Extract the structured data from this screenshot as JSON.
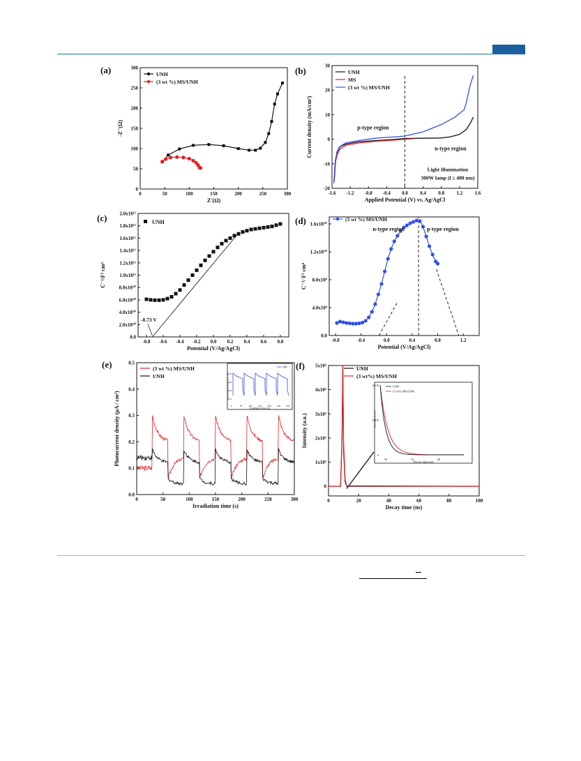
{
  "colors": {
    "black": "#111111",
    "red": "#e81e25",
    "blue": "#3050e8",
    "dashed": "#222222",
    "rule": "#1f6fa6",
    "tab": "#1a5f9c"
  },
  "panels": [
    {
      "id": "a",
      "label": "(a)"
    },
    {
      "id": "b",
      "label": "(b)"
    },
    {
      "id": "c",
      "label": "(c)"
    },
    {
      "id": "d",
      "label": "(d)"
    },
    {
      "id": "e",
      "label": "(e)"
    },
    {
      "id": "f",
      "label": "(f)"
    }
  ],
  "chart_data": [
    {
      "panel": "a",
      "type": "line",
      "xlabel": "Z'(Ω)",
      "ylabel": "-Z''(Ω)",
      "xlim": [
        0,
        300
      ],
      "ylim": [
        0,
        300
      ],
      "xticks": [
        0,
        50,
        100,
        150,
        200,
        250,
        300
      ],
      "yticks": [
        0,
        50,
        100,
        150,
        200,
        250,
        300
      ],
      "legend": "top-left",
      "series": [
        {
          "name": "UNH",
          "color": "#111111",
          "x": [
            45,
            57,
            80,
            108,
            140,
            170,
            200,
            222,
            235,
            245,
            255,
            262,
            268,
            274,
            280,
            290
          ],
          "y": [
            67,
            84,
            99,
            108,
            110,
            107,
            100,
            96,
            96,
            101,
            115,
            137,
            167,
            210,
            235,
            262
          ]
        },
        {
          "name": "(3 wt %) MS/UNH",
          "color": "#e81e25",
          "x": [
            45,
            52,
            62,
            75,
            88,
            100,
            108,
            114,
            118,
            121,
            123
          ],
          "y": [
            68,
            74,
            78,
            79,
            78,
            75,
            70,
            65,
            59,
            53,
            52
          ]
        }
      ]
    },
    {
      "panel": "b",
      "type": "line",
      "xlabel": "Applied Potential (V) vs. Ag/AgCl",
      "ylabel": "Current density (mA/cm²)",
      "xlim": [
        -1.6,
        1.6
      ],
      "ylim": [
        -20,
        30
      ],
      "xticks": [
        "-1.6",
        "-1.2",
        "-0.8",
        "-0.4",
        "0.0",
        "0.4",
        "0.8",
        "1.2",
        "1.6"
      ],
      "yticks": [
        "-20",
        "-10",
        "0",
        "10",
        "20",
        "30"
      ],
      "legend": "top-left",
      "annotations": [
        "p-type region",
        "n-type region",
        "Light illumination",
        "300W lamp (l ≥ 400 nm)"
      ],
      "series": [
        {
          "name": "UNH",
          "color": "#111111",
          "x": [
            -1.55,
            -1.52,
            -1.48,
            -1.42,
            -1.3,
            -1.0,
            -0.6,
            -0.2,
            0.0,
            0.4,
            0.8,
            1.0,
            1.2,
            1.35,
            1.45,
            1.5
          ],
          "y": [
            -16,
            -8,
            -5,
            -3,
            -2,
            -1,
            -0.5,
            0,
            0.3,
            0.4,
            0.5,
            1,
            2,
            4,
            7,
            9
          ]
        },
        {
          "name": "MS",
          "color": "#e81e25",
          "x": [
            -1.55,
            -1.52,
            -1.48,
            -1.42,
            -1.3,
            -1.0,
            -0.6,
            -0.2,
            0.0,
            0.2
          ],
          "y": [
            -17,
            -9,
            -6,
            -4,
            -2.5,
            -1.5,
            -0.8,
            -0.3,
            0.0,
            0.2
          ]
        },
        {
          "name": "(3 wt %) MS/UNH",
          "color": "#3050e8",
          "x": [
            -1.56,
            -1.53,
            -1.49,
            -1.43,
            -1.3,
            -1.0,
            -0.6,
            -0.2,
            0.0,
            0.4,
            0.8,
            1.1,
            1.3,
            1.35,
            1.42,
            1.5
          ],
          "y": [
            -18,
            -9,
            -5,
            -3,
            -1.5,
            -0.5,
            0.5,
            1.0,
            1.3,
            3,
            6,
            9,
            12,
            15,
            21,
            26
          ]
        }
      ]
    },
    {
      "panel": "c",
      "type": "scatter",
      "xlabel": "Potential (V/Ag/AgCl)",
      "ylabel": "C⁻²/F² cm⁴",
      "xlim": [
        -0.9,
        0.9
      ],
      "ylim": [
        0,
        200000000000.0
      ],
      "xticks": [
        "-0.8",
        "-0.6",
        "-0.4",
        "-0.2",
        "0.0",
        "0.2",
        "0.4",
        "0.6",
        "0.8"
      ],
      "yticks": [
        "0.0",
        "2.0x10¹⁰",
        "4.0x10¹⁰",
        "6.0x10¹⁰",
        "8.0x10¹⁰",
        "1.0x10¹¹",
        "1.2x10¹¹",
        "1.4x10¹¹",
        "1.6x10¹¹",
        "1.8x10¹¹",
        "2.0x10¹¹"
      ],
      "legend": "top-left",
      "annotations": [
        "-0.73 V"
      ],
      "series": [
        {
          "name": "UNH",
          "color": "#111111",
          "x": [
            -0.8,
            -0.75,
            -0.7,
            -0.65,
            -0.6,
            -0.55,
            -0.5,
            -0.45,
            -0.4,
            -0.35,
            -0.3,
            -0.25,
            -0.2,
            -0.15,
            -0.1,
            -0.05,
            0.0,
            0.05,
            0.1,
            0.15,
            0.2,
            0.25,
            0.3,
            0.35,
            0.4,
            0.45,
            0.5,
            0.55,
            0.6,
            0.65,
            0.7,
            0.75,
            0.8
          ],
          "y": [
            61000000000.0,
            60000000000.0,
            59500000000.0,
            59500000000.0,
            60000000000.0,
            62000000000.0,
            65000000000.0,
            70000000000.0,
            76000000000.0,
            84000000000.0,
            92000000000.0,
            100000000000.0,
            108000000000.0,
            116000000000.0,
            124000000000.0,
            131000000000.0,
            138000000000.0,
            145000000000.0,
            151000000000.0,
            156000000000.0,
            160000000000.0,
            164000000000.0,
            167000000000.0,
            170000000000.0,
            172000000000.0,
            174000000000.0,
            175000000000.0,
            176000000000.0,
            177000000000.0,
            178000000000.0,
            179000000000.0,
            181000000000.0,
            183000000000.0
          ]
        }
      ],
      "tangent": {
        "x": [
          -0.73,
          0.28
        ],
        "y": [
          0,
          165000000000.0
        ]
      }
    },
    {
      "panel": "d",
      "type": "line",
      "xlabel": "Potential (V/Ag/AgCl)",
      "ylabel": "C⁻²/ F² cm⁴",
      "xlim": [
        -0.9,
        1.45
      ],
      "ylim": [
        0,
        17000000000.0
      ],
      "xticks": [
        "-0.8",
        "-0.4",
        "0.0",
        "0.4",
        "0.8",
        "1.2"
      ],
      "yticks": [
        "0.0",
        "4.0x10⁹",
        "8.0x10⁹",
        "1.2x10¹⁰",
        "1.6x10¹⁰"
      ],
      "legend": "top-left",
      "annotations": [
        "n-type region",
        "p-type region"
      ],
      "series": [
        {
          "name": "(3 wt %) MS/UNH",
          "color": "#3050e8",
          "x": [
            -0.78,
            -0.73,
            -0.68,
            -0.63,
            -0.58,
            -0.53,
            -0.48,
            -0.43,
            -0.38,
            -0.33,
            -0.28,
            -0.23,
            -0.18,
            -0.13,
            -0.08,
            -0.03,
            0.02,
            0.07,
            0.12,
            0.17,
            0.22,
            0.27,
            0.32,
            0.37,
            0.42,
            0.47,
            0.52,
            0.57,
            0.62,
            0.67,
            0.72,
            0.77,
            0.8
          ],
          "y": [
            1800000000.0,
            2000000000.0,
            1900000000.0,
            1800000000.0,
            1750000000.0,
            1700000000.0,
            1700000000.0,
            1750000000.0,
            1850000000.0,
            2100000000.0,
            2600000000.0,
            3400000000.0,
            4500000000.0,
            5900000000.0,
            7400000000.0,
            9200000000.0,
            11000000000.0,
            12400000000.0,
            13500000000.0,
            14300000000.0,
            15000000000.0,
            15500000000.0,
            15800000000.0,
            16100000000.0,
            16300000000.0,
            16500000000.0,
            16400000000.0,
            15600000000.0,
            14200000000.0,
            12800000000.0,
            11600000000.0,
            10600000000.0,
            10300000000.0
          ]
        }
      ],
      "dashed_lines": [
        {
          "x": [
            -0.12,
            0.17
          ],
          "y": [
            0,
            4800000000.0
          ]
        },
        {
          "x": [
            0.5,
            0.5
          ],
          "y": [
            0,
            17000000000.0
          ]
        },
        {
          "x": [
            0.78,
            1.13
          ],
          "y": [
            9500000000.0,
            0
          ]
        }
      ]
    },
    {
      "panel": "e",
      "type": "line",
      "xlabel": "Irradiation time (s)",
      "ylabel": "Photocurrent density (μA / cm²)",
      "xlim": [
        0,
        300
      ],
      "ylim": [
        0,
        0.5
      ],
      "xticks": [
        0,
        50,
        100,
        150,
        200,
        250,
        300
      ],
      "yticks": [
        "0.0",
        "0.1",
        "0.2",
        "0.3",
        "0.4",
        "0.5"
      ],
      "legend": "top-left",
      "series": [
        {
          "name": "(3 wt %) MS/UNH",
          "color": "#e81e25",
          "on_times": [
            30,
            90,
            150,
            210,
            270
          ],
          "off_times": [
            60,
            120,
            180,
            240,
            300
          ],
          "peak": 0.3,
          "on_end": 0.2,
          "off_start": 0.06,
          "off_end": 0.14
        },
        {
          "name": "UNH",
          "color": "#111111",
          "on_times": [
            30,
            90,
            150,
            210,
            270
          ],
          "off_times": [
            60,
            120,
            180,
            240,
            300
          ],
          "peak": 0.17,
          "on_end": 0.12,
          "off_start": 0.06,
          "off_end": 0.04
        }
      ],
      "inset": {
        "xlabel": "Irradiation time (s)",
        "ylabel": "Photocurrent density (μA/cm²)",
        "xticks": [
          "0",
          "50",
          "100",
          "150",
          "200",
          "250",
          "300"
        ],
        "yticks": [
          "0.04",
          "0.06",
          "0.08",
          "0.10"
        ],
        "legend": "MS"
      }
    },
    {
      "panel": "f",
      "type": "line",
      "xlabel": "Decay time (ns)",
      "ylabel": "Intensity (a.u.)",
      "xlim": [
        0,
        100
      ],
      "ylim": [
        -400,
        5000
      ],
      "xticks": [
        0,
        20,
        40,
        60,
        80,
        100
      ],
      "yticks": [
        "0",
        "1x10³",
        "2x10³",
        "3x10³",
        "4x10³",
        "5x10³"
      ],
      "legend": "top-left",
      "series": [
        {
          "name": "UNH",
          "color": "#111111",
          "x": [
            0,
            8,
            9,
            9.5,
            10,
            11,
            12,
            100
          ],
          "y": [
            0,
            0,
            2000,
            5000,
            1500,
            200,
            0,
            0
          ]
        },
        {
          "name": "(3 wt%) MS/UNH",
          "color": "#e81e25",
          "x": [
            0,
            8,
            9,
            9.5,
            10,
            11,
            12,
            100
          ],
          "y": [
            0,
            0,
            2100,
            5000,
            1800,
            300,
            20,
            0
          ]
        }
      ],
      "inset": {
        "xlabel": "Decay time (ns)",
        "ylabel": "Intensity (a.u.)",
        "xticks": [
          "10",
          "15",
          "20"
        ],
        "yticks": [
          "0",
          "1x10³",
          "2x10³"
        ],
        "legend": [
          "UNH",
          "(3 wt%) MS/UNH"
        ]
      }
    }
  ]
}
